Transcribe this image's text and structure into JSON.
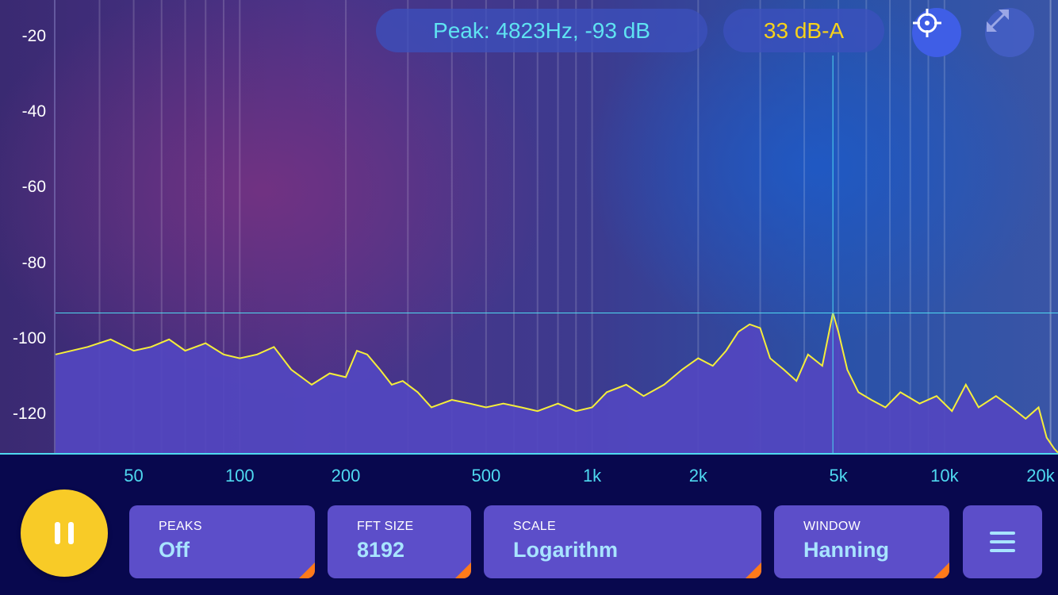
{
  "readouts": {
    "peak": "Peak: 4823Hz, -93 dB",
    "level": "33 dB-A"
  },
  "icons": {
    "crosshair": "crosshair-icon",
    "fullscreen": "expand-icon",
    "pause": "pause-icon",
    "menu": "hamburger-menu-icon"
  },
  "controls": [
    {
      "title": "PEAKS",
      "value": "Off"
    },
    {
      "title": "FFT SIZE",
      "value": "8192"
    },
    {
      "title": "SCALE",
      "value": "Logarithm"
    },
    {
      "title": "WINDOW",
      "value": "Hanning"
    }
  ],
  "colors": {
    "trace": "#f5ee3a",
    "fill": "#5246c0",
    "cursor": "#4fd9f0",
    "pause": "#f8cb27",
    "corner_accent": "#ff7a1a"
  },
  "chart_data": {
    "type": "area",
    "xscale": "log",
    "xlim": [
      30,
      21000
    ],
    "ylim": [
      -130,
      -15
    ],
    "yticks": [
      "-20",
      "-40",
      "-60",
      "-80",
      "-100",
      "-120"
    ],
    "ytick_values": [
      -20,
      -40,
      -60,
      -80,
      -100,
      -120
    ],
    "xticks": [
      "50",
      "100",
      "200",
      "500",
      "1k",
      "2k",
      "5k",
      "10k",
      "20k"
    ],
    "xtick_values": [
      50,
      100,
      200,
      500,
      1000,
      2000,
      5000,
      10000,
      20000
    ],
    "peak_marker": {
      "x": 4823,
      "y": -93
    },
    "x": [
      30,
      37,
      43,
      50,
      56,
      63,
      70,
      80,
      90,
      100,
      112,
      125,
      140,
      160,
      180,
      200,
      215,
      230,
      250,
      270,
      290,
      320,
      350,
      400,
      450,
      500,
      560,
      630,
      700,
      800,
      900,
      1000,
      1100,
      1250,
      1400,
      1600,
      1800,
      2000,
      2200,
      2400,
      2600,
      2800,
      3000,
      3200,
      3500,
      3800,
      4100,
      4500,
      4823,
      5000,
      5300,
      5700,
      6200,
      6800,
      7500,
      8500,
      9500,
      10500,
      11500,
      12500,
      14000,
      15500,
      17000,
      18500,
      19500,
      20500,
      21000
    ],
    "y": [
      -104,
      -102,
      -100,
      -103,
      -102,
      -100,
      -103,
      -101,
      -104,
      -105,
      -104,
      -102,
      -108,
      -112,
      -109,
      -110,
      -103,
      -104,
      -108,
      -112,
      -111,
      -114,
      -118,
      -116,
      -117,
      -118,
      -117,
      -118,
      -119,
      -117,
      -119,
      -118,
      -114,
      -112,
      -115,
      -112,
      -108,
      -105,
      -107,
      -103,
      -98,
      -96,
      -97,
      -105,
      -108,
      -111,
      -104,
      -107,
      -93,
      -98,
      -108,
      -114,
      -116,
      -118,
      -114,
      -117,
      -115,
      -119,
      -112,
      -118,
      -115,
      -118,
      -121,
      -118,
      -126,
      -129,
      -130
    ]
  }
}
